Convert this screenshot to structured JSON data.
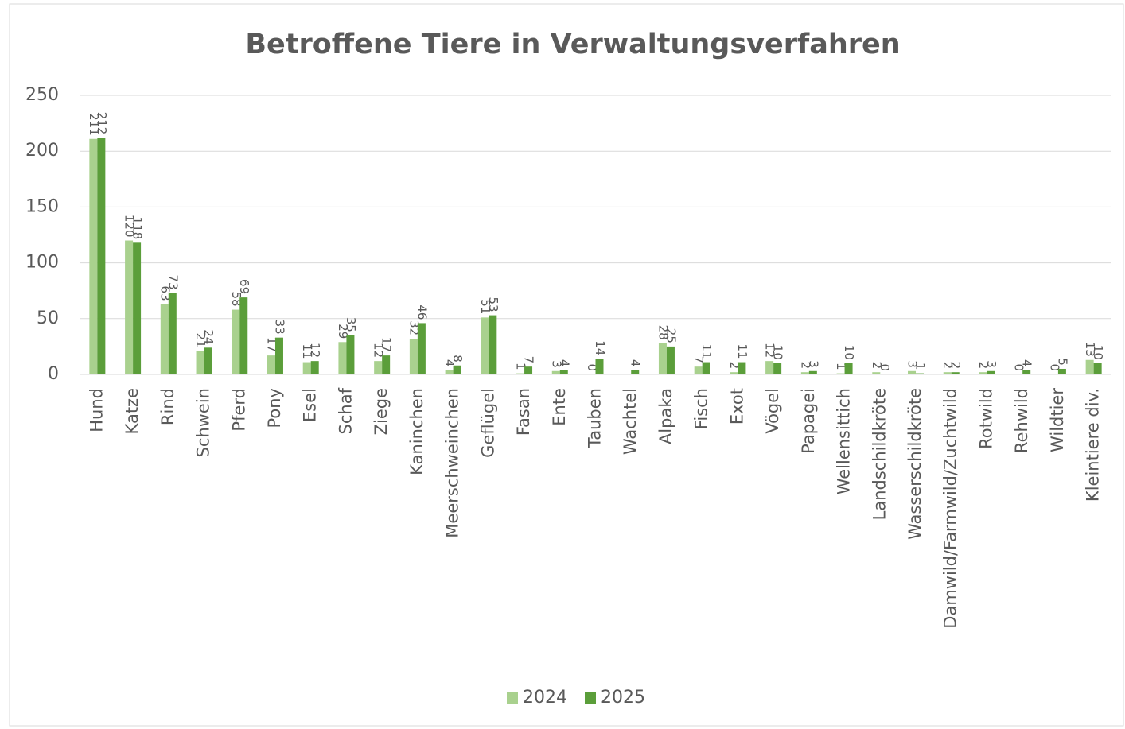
{
  "chart_data": {
    "type": "bar",
    "title": "Betroffene Tiere in Verwaltungsverfahren",
    "categories": [
      "Hund",
      "Katze",
      "Rind",
      "Schwein",
      "Pferd",
      "Pony",
      "Esel",
      "Schaf",
      "Ziege",
      "Kaninchen",
      "Meerschweinchen",
      "Geflügel",
      "Fasan",
      "Ente",
      "Tauben",
      "Wachtel",
      "Alpaka",
      "Fisch",
      "Exot",
      "Vögel",
      "Papagei",
      "Wellensittich",
      "Landschildkröte",
      "Wasserschildkröte",
      "Damwild/Farmwild/Zuchtwild",
      "Rotwild",
      "Rehwild",
      "Wildtier",
      "Kleintiere div."
    ],
    "series": [
      {
        "name": "2024",
        "color": "#a9d18e",
        "values": [
          211,
          120,
          63,
          21,
          58,
          17,
          11,
          29,
          12,
          32,
          4,
          51,
          1,
          3,
          0,
          null,
          28,
          7,
          2,
          12,
          2,
          1,
          2,
          3,
          2,
          2,
          0,
          0,
          13
        ]
      },
      {
        "name": "2025",
        "color": "#5b9e3a",
        "values": [
          212,
          118,
          73,
          24,
          69,
          33,
          12,
          35,
          17,
          46,
          8,
          53,
          7,
          4,
          14,
          4,
          25,
          11,
          11,
          10,
          3,
          10,
          0,
          1,
          2,
          3,
          4,
          5,
          10
        ]
      }
    ],
    "ylim": [
      0,
      250
    ],
    "yticks": [
      0,
      50,
      100,
      150,
      200,
      250
    ],
    "grid": true,
    "legend": "bottom"
  }
}
